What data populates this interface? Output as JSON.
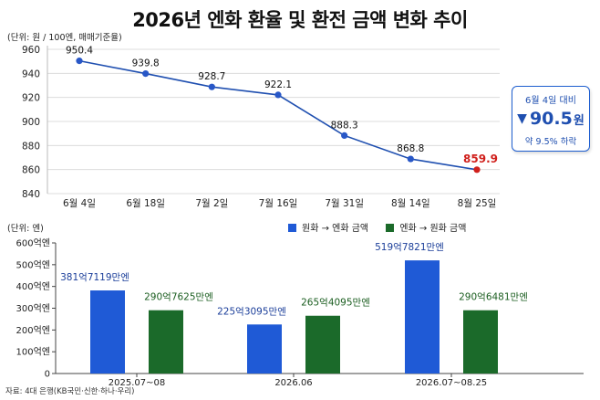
{
  "title": "2026년 엔화 환율 및 환전 금액 변화 추이",
  "top_unit": "(단위: 원 / 100엔, 매매기준율)",
  "bottom_unit": "(단위: 엔)",
  "source": "자료: 4대 은행(KB국민·신한·하나·우리)",
  "callout": {
    "date": "6월 4일 대비",
    "arrow": "▼",
    "value": "90.5",
    "unit": "원",
    "percent": "약 9.5% 하락"
  },
  "legend": {
    "series1": "원화 → 엔화 금액",
    "series2": "엔화 → 원화 금액"
  },
  "colors": {
    "line": "#1f4fb0",
    "marker": "#2857c7",
    "last_value": "#d0201c",
    "bar_blue": "#1f5ad6",
    "bar_green": "#1b6a2a",
    "blue_label": "#1c3f9a",
    "green_label": "#1b5e20"
  },
  "chart_data": [
    {
      "type": "line",
      "title": "",
      "categories": [
        "6월 4일",
        "6월 18일",
        "7월 2일",
        "7월 16일",
        "7월 31일",
        "8월 14일",
        "8월 25일"
      ],
      "values": [
        950.4,
        939.8,
        928.7,
        922.1,
        888.3,
        868.8,
        859.9
      ],
      "data_labels": [
        "950.4",
        "939.8",
        "928.7",
        "922.1",
        "888.3",
        "868.8",
        "859.9"
      ],
      "y_ticks": [
        "960",
        "940",
        "920",
        "900",
        "880",
        "860",
        "840"
      ],
      "ylim": [
        840,
        960
      ],
      "grid": true,
      "highlight_last": true
    },
    {
      "type": "bar",
      "categories": [
        "2025.07~08",
        "2026.06",
        "2026.07~08.25"
      ],
      "series": [
        {
          "name": "원화 → 엔화 금액",
          "values": [
            38171190000,
            22530950000,
            51978210000
          ],
          "labels": [
            "381억7119만엔",
            "225억3095만엔",
            "519억7821만엔"
          ]
        },
        {
          "name": "엔화 → 원화 금액",
          "values": [
            29076250000,
            26540950000,
            29064810000
          ],
          "labels": [
            "290억7625만엔",
            "265억4095만엔",
            "290억6481만엔"
          ]
        }
      ],
      "y_ticks": [
        "600억엔",
        "500억엔",
        "400억엔",
        "300억엔",
        "200억엔",
        "100억엔",
        "0"
      ],
      "ylim": [
        0,
        60000000000
      ],
      "grid": false
    }
  ]
}
